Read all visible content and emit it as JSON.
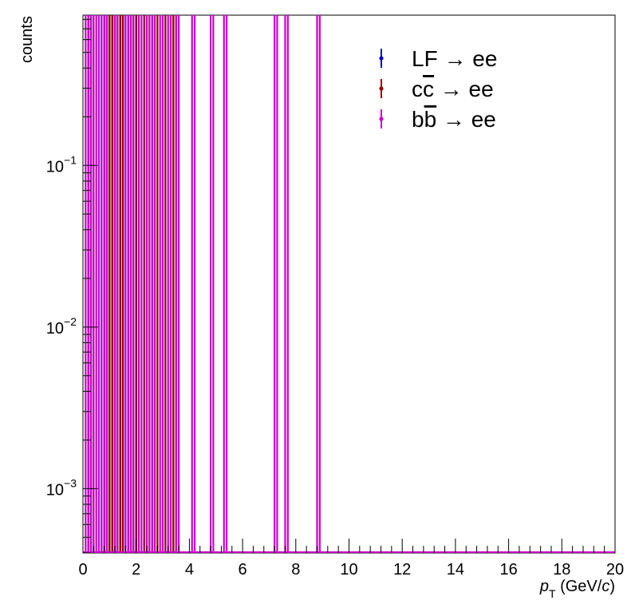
{
  "chart_data": {
    "type": "histogram",
    "xlabel": {
      "symbol": "p",
      "subscript": "T",
      "unit_prefix": " (GeV/",
      "unit_italic": "c",
      "unit_suffix": ")"
    },
    "ylabel": "counts",
    "xlim": [
      0,
      20
    ],
    "ylim": [
      0.0004,
      0.85
    ],
    "yscale": "log",
    "grid": false,
    "legend_position": "top-right",
    "x_ticks": [
      0,
      2,
      4,
      6,
      8,
      10,
      12,
      14,
      16,
      18,
      20
    ],
    "x_tick_labels": [
      "0",
      "2",
      "4",
      "6",
      "8",
      "10",
      "12",
      "14",
      "16",
      "18",
      "20"
    ],
    "y_ticks": [
      0.001,
      0.01,
      0.1
    ],
    "y_tick_labels": [
      {
        "base": "10",
        "exp": "−3"
      },
      {
        "base": "10",
        "exp": "−2"
      },
      {
        "base": "10",
        "exp": "−1"
      }
    ],
    "bin_width": 0.1,
    "series": [
      {
        "name": {
          "pre": "LF",
          "over": "",
          "post": " → ee"
        },
        "color": "#0000cc",
        "bins_filled": [
          0.2,
          0.7,
          0.8,
          1.0,
          1.1,
          1.2,
          1.4,
          1.5,
          1.8,
          2.0
        ]
      },
      {
        "name": {
          "pre": "c",
          "over": "c",
          "post": " → ee"
        },
        "color": "#990000",
        "bins_filled": [
          0.3,
          0.9,
          1.0,
          1.1,
          1.3,
          1.4,
          1.7,
          1.9,
          2.3,
          2.5,
          2.7,
          3.0,
          3.3,
          3.4
        ]
      },
      {
        "name": {
          "pre": "b",
          "over": "b",
          "post": " → ee"
        },
        "color": "#cc00cc",
        "bins_filled": [
          0.1,
          0.3,
          0.4,
          0.6,
          0.8,
          1.2,
          1.6,
          1.8,
          2.1,
          2.4,
          2.6,
          2.9,
          3.2,
          3.5,
          4.1,
          4.8,
          5.3,
          7.2,
          7.6,
          8.8
        ]
      }
    ]
  }
}
